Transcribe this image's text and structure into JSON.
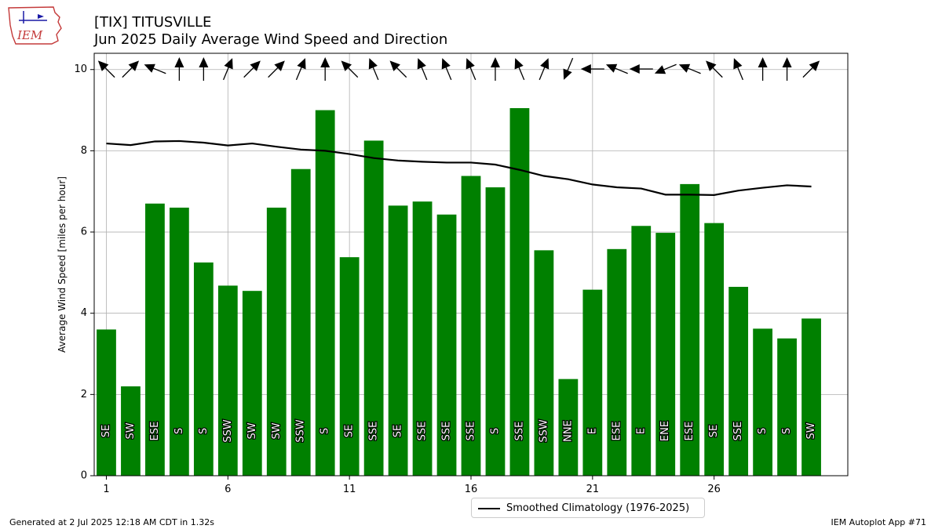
{
  "header": {
    "logo_text": "IEM",
    "title_line1": "[TIX] TITUSVILLE",
    "title_line2": "Jun 2025 Daily Average Wind Speed and Direction"
  },
  "footer": {
    "left": "Generated at 2 Jul 2025 12:18 AM CDT in 1.32s",
    "right": "IEM Autoplot App #71"
  },
  "legend": {
    "label": "Smoothed Climatology (1976-2025)"
  },
  "colors": {
    "bar": "#008000",
    "climatology": "#000000",
    "grid": "#b0b0b0"
  },
  "chart_data": {
    "type": "bar",
    "ylabel": "Average Wind Speed [miles per hour]",
    "xlabel": "",
    "ylim": [
      0,
      10.4
    ],
    "xlim": [
      0.5,
      31.5
    ],
    "yticks": [
      0,
      2,
      4,
      6,
      8,
      10
    ],
    "xticks": [
      1,
      6,
      11,
      16,
      21,
      26
    ],
    "grid": true,
    "legend_placement": "bottom-center",
    "days": [
      1,
      2,
      3,
      4,
      5,
      6,
      7,
      8,
      9,
      10,
      11,
      12,
      13,
      14,
      15,
      16,
      17,
      18,
      19,
      20,
      21,
      22,
      23,
      24,
      25,
      26,
      27,
      28,
      29,
      30
    ],
    "speeds": [
      3.6,
      2.2,
      6.7,
      6.6,
      5.25,
      4.68,
      4.55,
      6.6,
      7.55,
      9.0,
      5.38,
      8.25,
      6.65,
      6.75,
      6.43,
      7.38,
      7.1,
      9.05,
      5.55,
      2.38,
      4.58,
      5.58,
      6.15,
      5.98,
      7.18,
      6.22,
      4.65,
      3.62,
      3.38,
      3.87
    ],
    "directions": [
      "SE",
      "SW",
      "ESE",
      "S",
      "S",
      "SSW",
      "SW",
      "SW",
      "SSW",
      "S",
      "SE",
      "SSE",
      "SE",
      "SSE",
      "SSE",
      "SSE",
      "S",
      "SSE",
      "SSW",
      "NNE",
      "E",
      "ESE",
      "E",
      "ENE",
      "ESE",
      "SE",
      "SSE",
      "S",
      "S",
      "SW"
    ],
    "climatology": {
      "name": "Smoothed Climatology (1976-2025)",
      "values": [
        8.18,
        8.14,
        8.23,
        8.24,
        8.2,
        8.13,
        8.18,
        8.1,
        8.03,
        8.0,
        7.92,
        7.82,
        7.76,
        7.73,
        7.71,
        7.71,
        7.66,
        7.53,
        7.38,
        7.3,
        7.17,
        7.1,
        7.07,
        6.92,
        6.92,
        6.91,
        7.02,
        7.09,
        7.15,
        7.12
      ]
    }
  }
}
